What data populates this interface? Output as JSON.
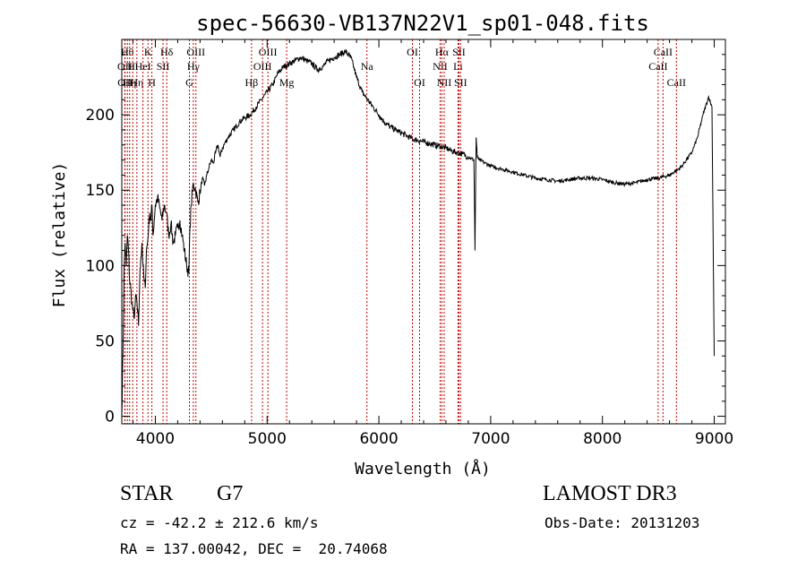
{
  "chart_data": {
    "type": "line",
    "title": "spec-56630-VB137N22V1_sp01-048.fits",
    "xlabel": "Wavelength (Å)",
    "ylabel": "Flux (relative)",
    "xlim": [
      3700,
      9100
    ],
    "ylim": [
      -5,
      250
    ],
    "xticks": [
      4000,
      5000,
      6000,
      7000,
      8000,
      9000
    ],
    "yticks": [
      0,
      50,
      100,
      150,
      200
    ],
    "grid": false,
    "legend": "none",
    "line_color": "#000000",
    "marker_color": "#cc0000",
    "series": [
      {
        "x": [
          3700,
          3710,
          3720,
          3730,
          3740,
          3750,
          3760,
          3770,
          3780,
          3790,
          3800,
          3810,
          3820,
          3830,
          3840,
          3850,
          3860,
          3870,
          3880,
          3890,
          3900,
          3910,
          3920,
          3930,
          3940,
          3950,
          3960,
          3970,
          3980,
          3990,
          4000,
          4020,
          4040,
          4060,
          4080,
          4100,
          4120,
          4140,
          4160,
          4180,
          4200,
          4220,
          4240,
          4260,
          4280,
          4300,
          4310,
          4320,
          4340,
          4360,
          4380,
          4400,
          4420,
          4440,
          4460,
          4480,
          4500,
          4520,
          4540,
          4560,
          4580,
          4600,
          4650,
          4700,
          4750,
          4800,
          4850,
          4900,
          4950,
          5000,
          5050,
          5100,
          5150,
          5200,
          5250,
          5300,
          5350,
          5400,
          5450,
          5500,
          5550,
          5600,
          5650,
          5700,
          5750,
          5800,
          5850,
          5900,
          5950,
          6000,
          6050,
          6100,
          6150,
          6200,
          6250,
          6300,
          6350,
          6400,
          6450,
          6500,
          6550,
          6600,
          6650,
          6700,
          6750,
          6800,
          6850,
          6860,
          6870,
          6880,
          6900,
          6950,
          7000,
          7100,
          7200,
          7300,
          7400,
          7500,
          7600,
          7700,
          7800,
          7900,
          8000,
          8100,
          8200,
          8300,
          8400,
          8500,
          8600,
          8700,
          8800,
          8850,
          8900,
          8950,
          8980,
          9000
        ],
        "y": [
          0,
          40,
          95,
          115,
          100,
          120,
          110,
          90,
          85,
          75,
          70,
          65,
          75,
          80,
          70,
          60,
          90,
          105,
          115,
          100,
          90,
          85,
          110,
          115,
          125,
          135,
          130,
          140,
          120,
          130,
          140,
          145,
          138,
          130,
          140,
          135,
          120,
          128,
          115,
          120,
          125,
          130,
          120,
          110,
          100,
          95,
          125,
          140,
          155,
          150,
          142,
          148,
          158,
          153,
          160,
          165,
          170,
          168,
          175,
          180,
          172,
          178,
          185,
          190,
          195,
          198,
          200,
          205,
          210,
          215,
          220,
          228,
          232,
          234,
          236,
          238,
          236,
          234,
          230,
          232,
          236,
          238,
          240,
          242,
          238,
          225,
          215,
          210,
          205,
          200,
          195,
          192,
          190,
          188,
          186,
          184,
          183,
          182,
          181,
          180,
          179,
          178,
          176,
          175,
          174,
          172,
          170,
          110,
          185,
          172,
          170,
          168,
          166,
          164,
          162,
          160,
          158,
          157,
          156,
          157,
          158,
          158,
          157,
          155,
          154,
          155,
          157,
          158,
          160,
          165,
          175,
          185,
          200,
          212,
          205,
          40
        ]
      }
    ],
    "line_markers": [
      {
        "x": 3727,
        "label": "OII",
        "row": 2
      },
      {
        "x": 3729,
        "label": "OII",
        "row": 3
      },
      {
        "x": 3750,
        "label": "Hθ",
        "row": 1
      },
      {
        "x": 3770,
        "label": "Hη",
        "row": 3
      },
      {
        "x": 3798,
        "label": "Hι",
        "row": 2
      },
      {
        "x": 3835,
        "label": "Hη",
        "row": 3
      },
      {
        "x": 3889,
        "label": "HeI",
        "row": 2
      },
      {
        "x": 3934,
        "label": "K",
        "row": 1
      },
      {
        "x": 3969,
        "label": "H",
        "row": 3
      },
      {
        "x": 4069,
        "label": "SII",
        "row": 2
      },
      {
        "x": 4102,
        "label": "Hδ",
        "row": 1
      },
      {
        "x": 4305,
        "label": "G",
        "row": 3
      },
      {
        "x": 4340,
        "label": "Hγ",
        "row": 2
      },
      {
        "x": 4363,
        "label": "OIII",
        "row": 1
      },
      {
        "x": 4861,
        "label": "Hβ",
        "row": 3
      },
      {
        "x": 4959,
        "label": "OIII",
        "row": 2
      },
      {
        "x": 5007,
        "label": "OIII",
        "row": 1
      },
      {
        "x": 5175,
        "label": "Mg",
        "row": 3
      },
      {
        "x": 5893,
        "label": "Na",
        "row": 2
      },
      {
        "x": 6300,
        "label": "OI",
        "row": 1
      },
      {
        "x": 6364,
        "label": "OI",
        "row": 3
      },
      {
        "x": 6548,
        "label": "NII",
        "row": 2
      },
      {
        "x": 6563,
        "label": "Hα",
        "row": 1
      },
      {
        "x": 6584,
        "label": "NII",
        "row": 3
      },
      {
        "x": 6708,
        "label": "Li",
        "row": 2
      },
      {
        "x": 6716,
        "label": "SII",
        "row": 1
      },
      {
        "x": 6731,
        "label": "SII",
        "row": 3
      },
      {
        "x": 8498,
        "label": "CaII",
        "row": 2
      },
      {
        "x": 8542,
        "label": "CaII",
        "row": 1
      },
      {
        "x": 8662,
        "label": "CaII",
        "row": 3
      }
    ]
  },
  "info": {
    "object_class": "STAR",
    "subclass": "G7",
    "survey": "LAMOST DR3",
    "redshift": "cz = -42.2 ± 212.6 km/s",
    "obs_date": "Obs-Date: 20131203",
    "coords": "RA = 137.00042, DEC =  20.74068"
  }
}
